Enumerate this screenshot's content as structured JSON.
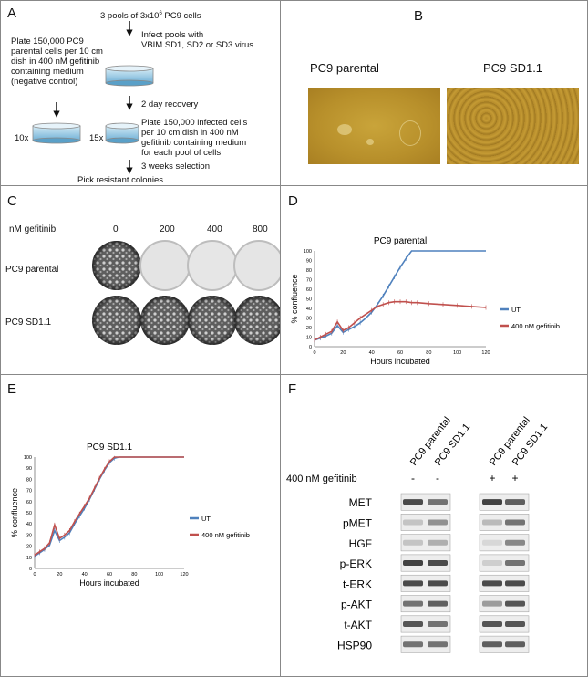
{
  "panels": {
    "a": "A",
    "b": "B",
    "c": "C",
    "d": "D",
    "e": "E",
    "f": "F"
  },
  "panel_a": {
    "top": "3 pools of 3x10",
    "top_sup": "6",
    "top_end": " PC9 cells",
    "infect": [
      "Infect pools with",
      "VBIM SD1, SD2 or SD3 virus"
    ],
    "plate_parental": [
      "Plate 150,000 PC9",
      "parental cells per 10 cm",
      "dish in 400 nM gefitinib",
      "containing medium",
      "(negative control)"
    ],
    "recovery": "2 day recovery",
    "plate_infected": [
      "Plate 150,000 infected cells",
      "per 10 cm dish in 400 nM",
      "gefitinib containing medium",
      "for each pool of cells"
    ],
    "mult_10": "10x",
    "mult_15": "15x",
    "selection": "3 weeks selection",
    "pick": "Pick resistant colonies"
  },
  "panel_b": {
    "left": "PC9 parental",
    "right": "PC9 SD1.1"
  },
  "panel_c": {
    "header": "nM gefitinib",
    "doses": [
      "0",
      "200",
      "400",
      "800"
    ],
    "rows": [
      "PC9 parental",
      "PC9 SD1.1"
    ]
  },
  "panel_f": {
    "columns": [
      "PC9 parental",
      "PC9 SD1.1",
      "PC9 parental",
      "PC9 SD1.1"
    ],
    "treatment_label": "400 nM gefitinib",
    "treatment_signs": [
      "-",
      "-",
      "+",
      "+"
    ],
    "bands": [
      "MET",
      "pMET",
      "HGF",
      "p-ERK",
      "t-ERK",
      "p-AKT",
      "t-AKT",
      "HSP90"
    ]
  },
  "chart_data": [
    {
      "type": "line",
      "title": "PC9 parental",
      "xlabel": "Hours incubated",
      "ylabel": "% confluence",
      "xlim": [
        0,
        120
      ],
      "ylim": [
        0,
        100
      ],
      "xticks": [
        0,
        20,
        40,
        60,
        80,
        100,
        120
      ],
      "yticks": [
        0,
        10,
        20,
        30,
        40,
        50,
        60,
        70,
        80,
        90,
        100
      ],
      "grid": false,
      "legend": "right",
      "series": [
        {
          "name": "UT",
          "color": "#4f81bd",
          "x": [
            0,
            4,
            8,
            12,
            16,
            20,
            24,
            28,
            32,
            36,
            40,
            44,
            48,
            52,
            56,
            60,
            64,
            68,
            72,
            80,
            90,
            100,
            110,
            120
          ],
          "y": [
            7,
            9,
            11,
            14,
            22,
            15,
            18,
            21,
            25,
            30,
            36,
            44,
            53,
            63,
            73,
            83,
            92,
            100,
            100,
            100,
            100,
            100,
            100,
            100
          ]
        },
        {
          "name": "400 nM gefitinib",
          "color": "#c0504d",
          "x": [
            0,
            4,
            8,
            12,
            16,
            20,
            24,
            28,
            32,
            36,
            40,
            44,
            48,
            52,
            56,
            60,
            64,
            68,
            72,
            80,
            90,
            100,
            110,
            120
          ],
          "y": [
            7,
            10,
            13,
            16,
            26,
            17,
            20,
            25,
            30,
            34,
            38,
            42,
            44,
            46,
            47,
            47,
            47,
            46,
            46,
            45,
            44,
            43,
            42,
            41
          ]
        }
      ]
    },
    {
      "type": "line",
      "title": "PC9 SD1.1",
      "xlabel": "Hours incubated",
      "ylabel": "% confluence",
      "xlim": [
        0,
        120
      ],
      "ylim": [
        0,
        100
      ],
      "xticks": [
        0,
        20,
        40,
        60,
        80,
        100,
        120
      ],
      "yticks": [
        0,
        10,
        20,
        30,
        40,
        50,
        60,
        70,
        80,
        90,
        100
      ],
      "grid": false,
      "legend": "right",
      "series": [
        {
          "name": "UT",
          "color": "#4f81bd",
          "x": [
            0,
            4,
            8,
            12,
            16,
            20,
            24,
            28,
            32,
            36,
            40,
            44,
            48,
            52,
            56,
            60,
            64,
            68,
            72,
            80,
            90,
            100,
            110,
            120
          ],
          "y": [
            11,
            14,
            17,
            21,
            34,
            25,
            28,
            32,
            40,
            47,
            54,
            62,
            71,
            80,
            88,
            95,
            99,
            100,
            100,
            100,
            100,
            100,
            100,
            100
          ]
        },
        {
          "name": "400 nM gefitinib",
          "color": "#c0504d",
          "x": [
            0,
            4,
            8,
            12,
            16,
            20,
            24,
            28,
            32,
            36,
            40,
            44,
            48,
            52,
            56,
            60,
            64,
            68,
            72,
            80,
            90,
            100,
            110,
            120
          ],
          "y": [
            12,
            15,
            18,
            23,
            39,
            27,
            30,
            34,
            42,
            49,
            56,
            63,
            72,
            81,
            89,
            96,
            100,
            100,
            100,
            100,
            100,
            100,
            100,
            100
          ]
        }
      ]
    }
  ]
}
